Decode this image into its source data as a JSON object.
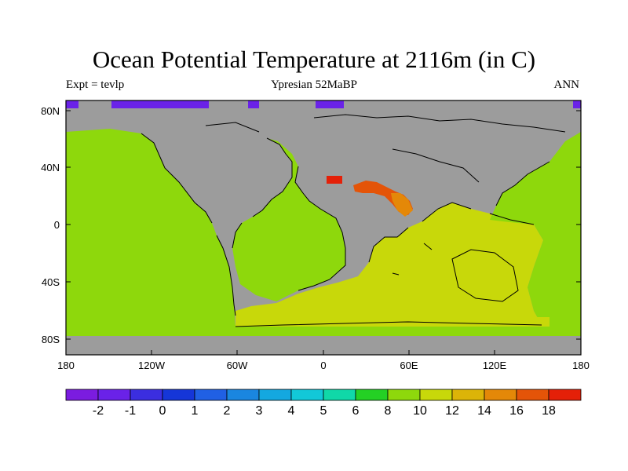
{
  "title": "Ocean Potential Temperature at 2116m (in C)",
  "left_label": "Expt = tevlp",
  "subtitle": "Ypresian  52MaBP",
  "right_label": "ANN",
  "map": {
    "land_color": "#9c9c9c",
    "lat_ticks": [
      "80N",
      "40N",
      "0",
      "40S",
      "80S"
    ],
    "lon_ticks": [
      "180",
      "120W",
      "60W",
      "0",
      "60E",
      "120E",
      "180"
    ]
  },
  "colorbar": {
    "colors": [
      "#7b1ce0",
      "#6a22e8",
      "#3b2ee0",
      "#1536d8",
      "#2060e4",
      "#1a86e0",
      "#14a8e0",
      "#12c8d8",
      "#10d8a8",
      "#24d024",
      "#8ed80c",
      "#c8d80a",
      "#dcb408",
      "#e48808",
      "#e45408",
      "#e42008"
    ],
    "labels": [
      "-2",
      "-1",
      "0",
      "1",
      "2",
      "3",
      "4",
      "5",
      "6",
      "8",
      "10",
      "12",
      "14",
      "16",
      "18"
    ]
  },
  "field": {
    "levels": {
      "cold": "#6a22e8",
      "mid": "#8ed80c",
      "warm": "#c8d80a",
      "hot1": "#e48808",
      "hot2": "#e45408",
      "hot3": "#e42008"
    }
  }
}
